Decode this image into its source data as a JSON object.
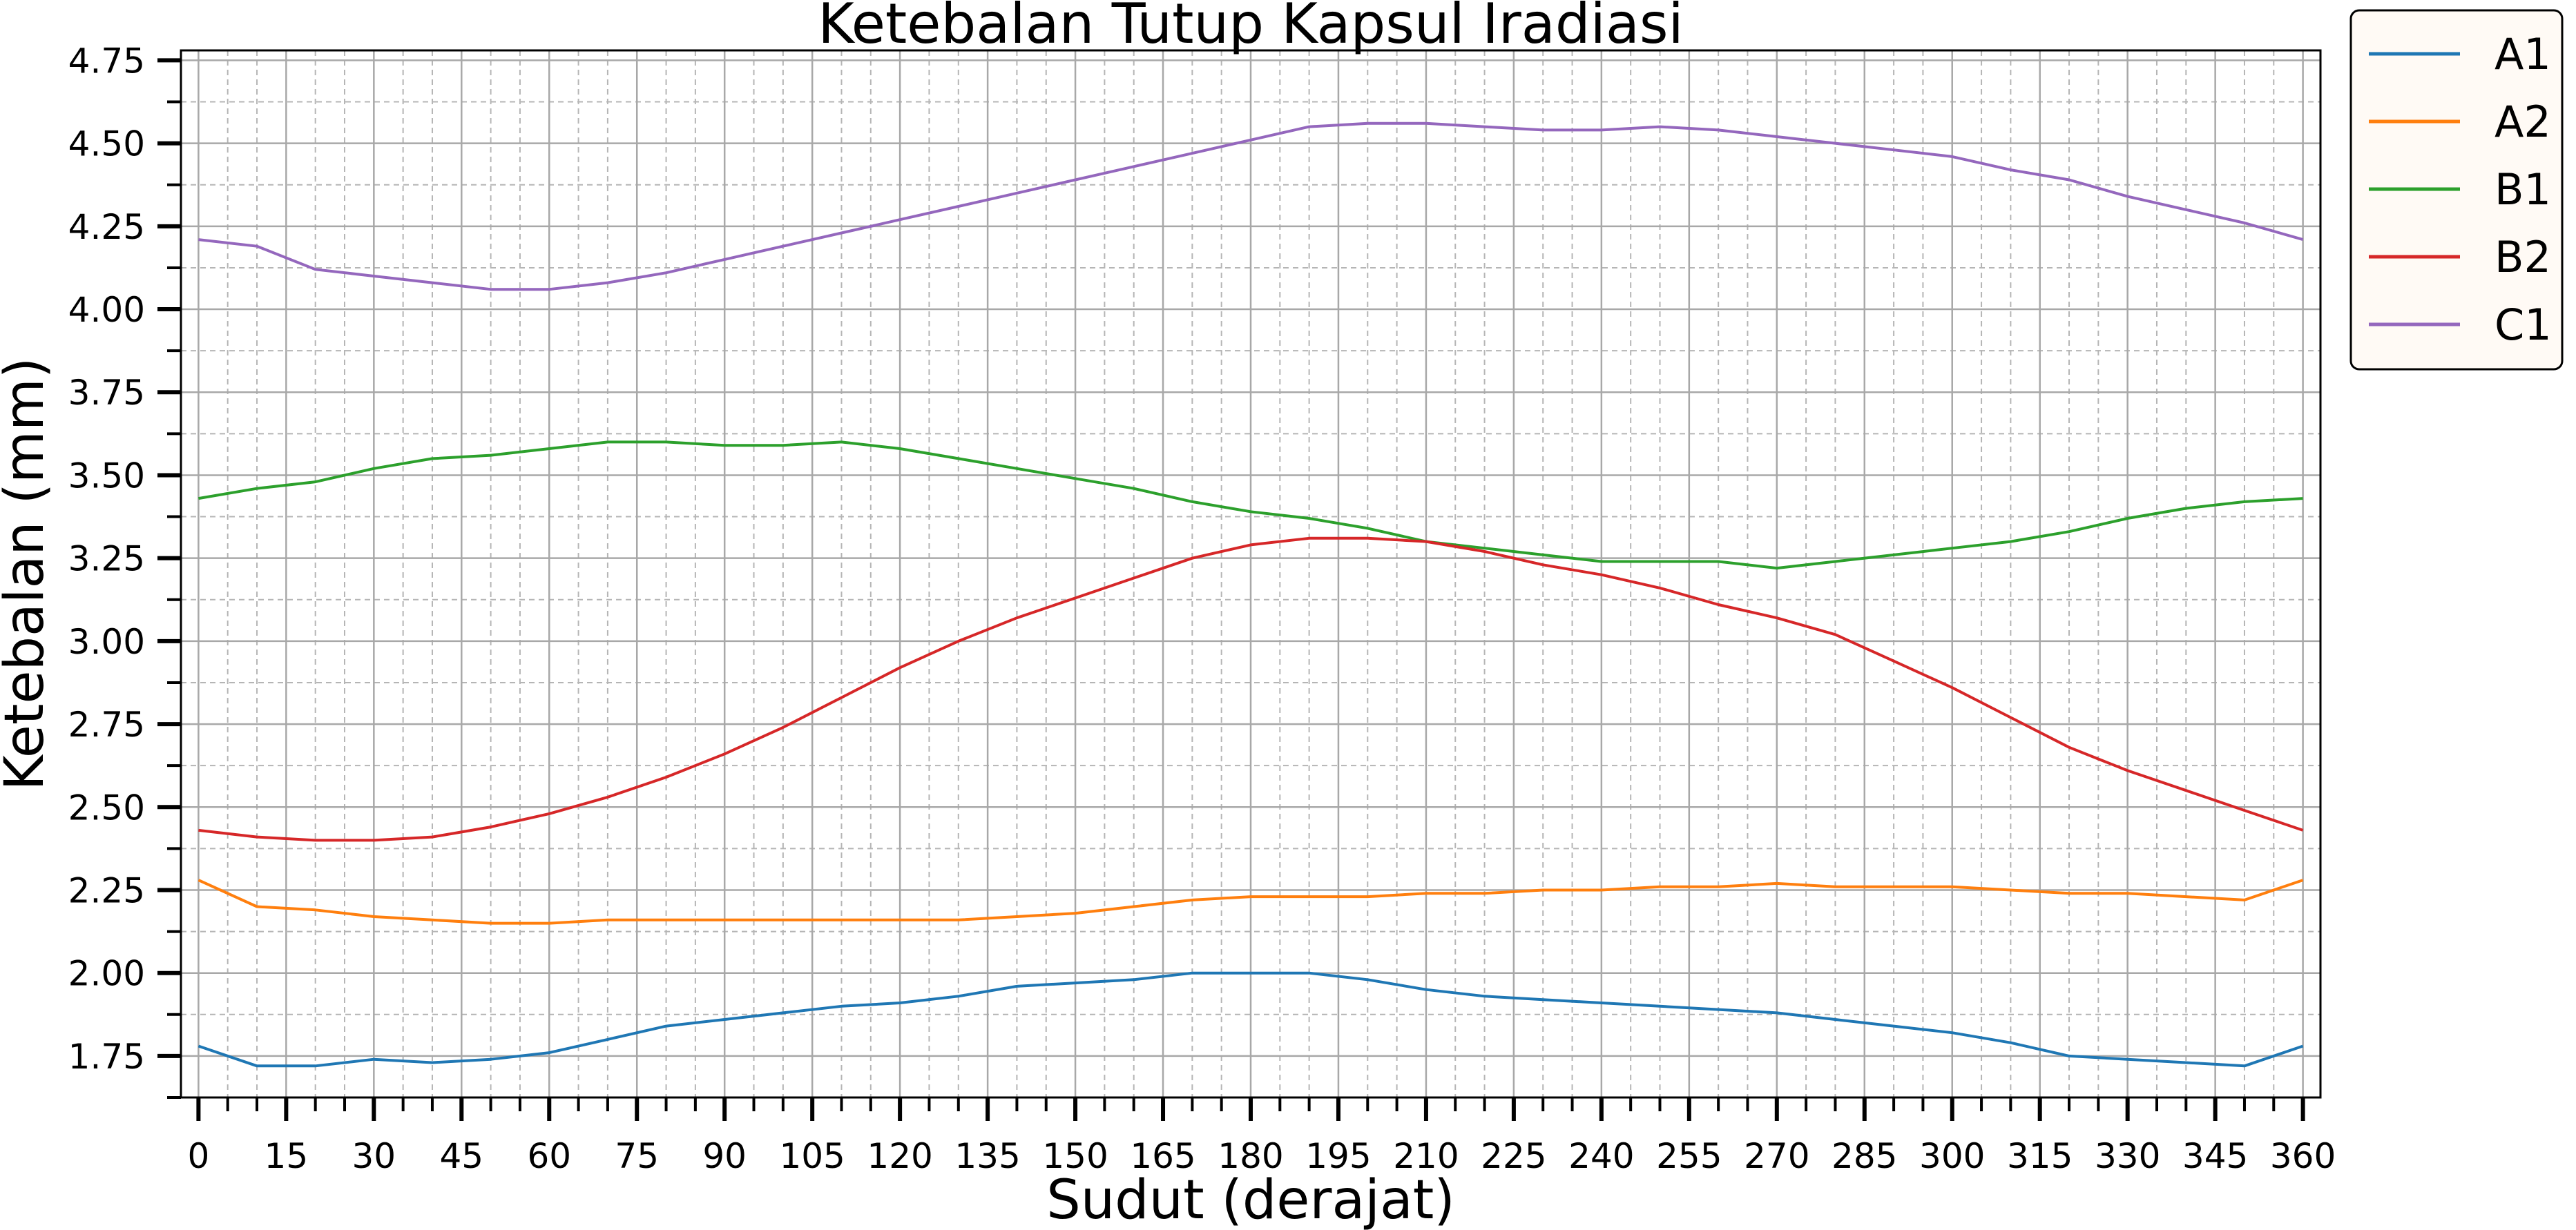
{
  "chart_data": {
    "type": "line",
    "title": "Ketebalan Tutup Kapsul Iradiasi",
    "xlabel": "Sudut (derajat)",
    "ylabel": "Ketebalan (mm)",
    "xlim": [
      -3,
      363
    ],
    "ylim": [
      1.625,
      4.78
    ],
    "x_major_ticks": [
      0,
      15,
      30,
      45,
      60,
      75,
      90,
      105,
      120,
      135,
      150,
      165,
      180,
      195,
      210,
      225,
      240,
      255,
      270,
      285,
      300,
      315,
      330,
      345,
      360
    ],
    "x_tick_labels": [
      "0",
      "15",
      "30",
      "45",
      "60",
      "75",
      "90",
      "105",
      "120",
      "135",
      "150",
      "165",
      "180",
      "195",
      "210",
      "225",
      "240",
      "255",
      "270",
      "285",
      "300",
      "315",
      "330",
      "345",
      "360"
    ],
    "y_major_ticks": [
      1.75,
      2.0,
      2.25,
      2.5,
      2.75,
      3.0,
      3.25,
      3.5,
      3.75,
      4.0,
      4.25,
      4.5,
      4.75
    ],
    "y_tick_labels": [
      "1.75",
      "2.00",
      "2.25",
      "2.50",
      "2.75",
      "3.00",
      "3.25",
      "3.50",
      "3.75",
      "4.00",
      "4.25",
      "4.50",
      "4.75"
    ],
    "grid": true,
    "legend_position": "outside-right-top",
    "series": [
      {
        "name": "A1",
        "color": "#1f77b4",
        "x": [
          0,
          10,
          20,
          30,
          40,
          50,
          60,
          70,
          80,
          90,
          100,
          110,
          120,
          130,
          140,
          150,
          160,
          170,
          180,
          190,
          200,
          210,
          220,
          230,
          240,
          250,
          260,
          270,
          280,
          290,
          300,
          310,
          320,
          330,
          340,
          350,
          360
        ],
        "y": [
          1.78,
          1.72,
          1.72,
          1.74,
          1.73,
          1.74,
          1.76,
          1.8,
          1.84,
          1.86,
          1.88,
          1.9,
          1.91,
          1.93,
          1.96,
          1.97,
          1.98,
          2.0,
          2.0,
          2.0,
          1.98,
          1.95,
          1.93,
          1.92,
          1.91,
          1.9,
          1.89,
          1.88,
          1.86,
          1.84,
          1.82,
          1.79,
          1.75,
          1.74,
          1.73,
          1.72,
          1.78
        ]
      },
      {
        "name": "A2",
        "color": "#ff7f0e",
        "x": [
          0,
          10,
          20,
          30,
          40,
          50,
          60,
          70,
          80,
          90,
          100,
          110,
          120,
          130,
          140,
          150,
          160,
          170,
          180,
          190,
          200,
          210,
          220,
          230,
          240,
          250,
          260,
          270,
          280,
          290,
          300,
          310,
          320,
          330,
          340,
          350,
          360
        ],
        "y": [
          2.28,
          2.2,
          2.19,
          2.17,
          2.16,
          2.15,
          2.15,
          2.16,
          2.16,
          2.16,
          2.16,
          2.16,
          2.16,
          2.16,
          2.17,
          2.18,
          2.2,
          2.22,
          2.23,
          2.23,
          2.23,
          2.24,
          2.24,
          2.25,
          2.25,
          2.26,
          2.26,
          2.27,
          2.26,
          2.26,
          2.26,
          2.25,
          2.24,
          2.24,
          2.23,
          2.22,
          2.28
        ]
      },
      {
        "name": "B1",
        "color": "#2ca02c",
        "x": [
          0,
          10,
          20,
          30,
          40,
          50,
          60,
          70,
          80,
          90,
          100,
          110,
          120,
          130,
          140,
          150,
          160,
          170,
          180,
          190,
          200,
          210,
          220,
          230,
          240,
          250,
          260,
          270,
          280,
          290,
          300,
          310,
          320,
          330,
          340,
          350,
          360
        ],
        "y": [
          3.43,
          3.46,
          3.48,
          3.52,
          3.55,
          3.56,
          3.58,
          3.6,
          3.6,
          3.59,
          3.59,
          3.6,
          3.58,
          3.55,
          3.52,
          3.49,
          3.46,
          3.42,
          3.39,
          3.37,
          3.34,
          3.3,
          3.28,
          3.26,
          3.24,
          3.24,
          3.24,
          3.22,
          3.24,
          3.26,
          3.28,
          3.3,
          3.33,
          3.37,
          3.4,
          3.42,
          3.43
        ]
      },
      {
        "name": "B2",
        "color": "#d62728",
        "x": [
          0,
          10,
          20,
          30,
          40,
          50,
          60,
          70,
          80,
          90,
          100,
          110,
          120,
          130,
          140,
          150,
          160,
          170,
          180,
          190,
          200,
          210,
          220,
          230,
          240,
          250,
          260,
          270,
          280,
          290,
          300,
          310,
          320,
          330,
          340,
          350,
          360
        ],
        "y": [
          2.43,
          2.41,
          2.4,
          2.4,
          2.41,
          2.44,
          2.48,
          2.53,
          2.59,
          2.66,
          2.74,
          2.83,
          2.92,
          3.0,
          3.07,
          3.13,
          3.19,
          3.25,
          3.29,
          3.31,
          3.31,
          3.3,
          3.27,
          3.23,
          3.2,
          3.16,
          3.11,
          3.07,
          3.02,
          2.94,
          2.86,
          2.77,
          2.68,
          2.61,
          2.55,
          2.49,
          2.43
        ]
      },
      {
        "name": "C1",
        "color": "#9467bd",
        "x": [
          0,
          10,
          20,
          30,
          40,
          50,
          60,
          70,
          80,
          90,
          100,
          110,
          120,
          130,
          140,
          150,
          160,
          170,
          180,
          190,
          200,
          210,
          220,
          230,
          240,
          250,
          260,
          270,
          280,
          290,
          300,
          310,
          320,
          330,
          340,
          350,
          360
        ],
        "y": [
          4.21,
          4.19,
          4.12,
          4.1,
          4.08,
          4.06,
          4.06,
          4.08,
          4.11,
          4.15,
          4.19,
          4.23,
          4.27,
          4.31,
          4.35,
          4.39,
          4.43,
          4.47,
          4.51,
          4.55,
          4.56,
          4.56,
          4.55,
          4.54,
          4.54,
          4.55,
          4.54,
          4.52,
          4.5,
          4.48,
          4.46,
          4.42,
          4.39,
          4.34,
          4.3,
          4.26,
          4.21
        ]
      }
    ]
  }
}
